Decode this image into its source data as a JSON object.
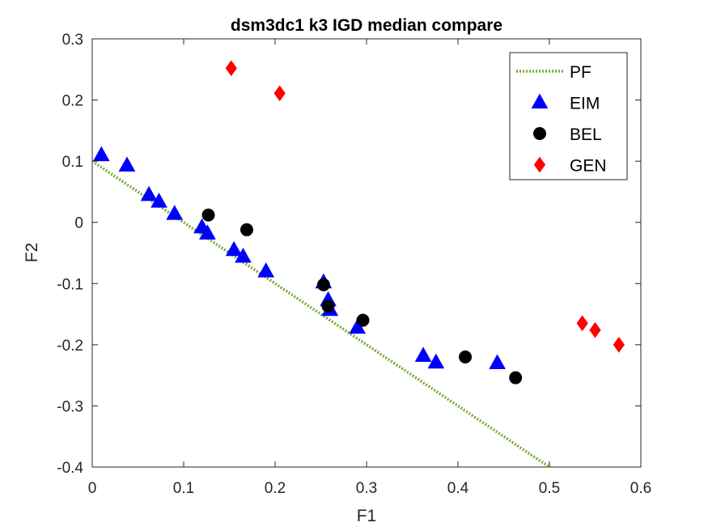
{
  "chart_data": {
    "type": "scatter",
    "title": "dsm3dc1 k3 IGD median compare",
    "xlabel": "F1",
    "ylabel": "F2",
    "xlim": [
      0,
      0.6
    ],
    "ylim": [
      -0.4,
      0.3
    ],
    "xticks": [
      "0",
      "0.1",
      "0.2",
      "0.3",
      "0.4",
      "0.5",
      "0.6"
    ],
    "yticks": [
      "-0.4",
      "-0.3",
      "-0.2",
      "-0.1",
      "0",
      "0.1",
      "0.2",
      "0.3"
    ],
    "grid": false,
    "legend_position": "top-right",
    "series": [
      {
        "name": "PF",
        "kind": "line",
        "style": "dotted",
        "color": "#77AC30",
        "points": [
          [
            0,
            0.1
          ],
          [
            0.5,
            -0.4
          ]
        ]
      },
      {
        "name": "EIM",
        "kind": "marker",
        "marker": "triangle",
        "color": "#0000FF",
        "points": [
          [
            0.01,
            0.11
          ],
          [
            0.038,
            0.093
          ],
          [
            0.062,
            0.045
          ],
          [
            0.073,
            0.034
          ],
          [
            0.09,
            0.014
          ],
          [
            0.12,
            -0.008
          ],
          [
            0.126,
            -0.018
          ],
          [
            0.155,
            -0.045
          ],
          [
            0.165,
            -0.056
          ],
          [
            0.19,
            -0.08
          ],
          [
            0.253,
            -0.098
          ],
          [
            0.258,
            -0.127
          ],
          [
            0.26,
            -0.143
          ],
          [
            0.29,
            -0.172
          ],
          [
            0.362,
            -0.218
          ],
          [
            0.376,
            -0.229
          ],
          [
            0.443,
            -0.23
          ]
        ]
      },
      {
        "name": "BEL",
        "kind": "marker",
        "marker": "circle",
        "color": "#000000",
        "points": [
          [
            0.127,
            0.012
          ],
          [
            0.169,
            -0.012
          ],
          [
            0.253,
            -0.102
          ],
          [
            0.258,
            -0.137
          ],
          [
            0.296,
            -0.16
          ],
          [
            0.408,
            -0.22
          ],
          [
            0.463,
            -0.254
          ]
        ]
      },
      {
        "name": "GEN",
        "kind": "marker",
        "marker": "diamond",
        "color": "#FF0000",
        "points": [
          [
            0.152,
            0.252
          ],
          [
            0.205,
            0.211
          ],
          [
            0.536,
            -0.165
          ],
          [
            0.55,
            -0.176
          ],
          [
            0.576,
            -0.2
          ]
        ]
      }
    ]
  }
}
